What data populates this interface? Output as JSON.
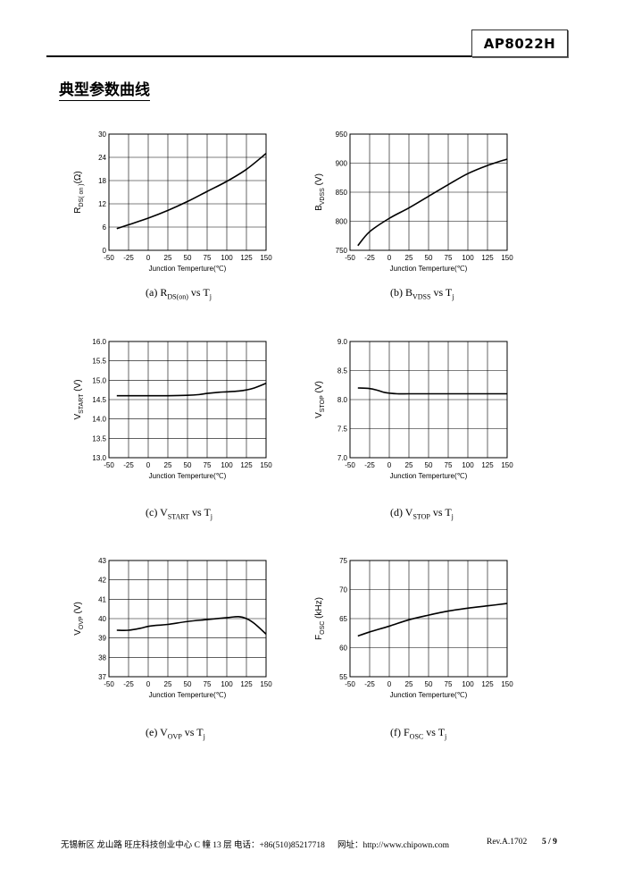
{
  "header": {
    "part_number": "AP8022H"
  },
  "section_title": "典型参数曲线",
  "chart_data": [
    {
      "type": "line",
      "xlabel": "Junction Temperture(℃)",
      "ylabel": {
        "main": "R",
        "sub": "DS( on )",
        "unit": "(Ω)"
      },
      "xlim": [
        -50,
        150
      ],
      "ylim": [
        0,
        30
      ],
      "xticks": [
        -50,
        -25,
        0,
        25,
        50,
        75,
        100,
        125,
        150
      ],
      "yticks": [
        0,
        6,
        12,
        18,
        24,
        30
      ],
      "grid": true,
      "x": [
        -40,
        -25,
        0,
        25,
        50,
        75,
        100,
        125,
        150
      ],
      "y": [
        5.6,
        6.6,
        8.3,
        10.3,
        12.6,
        15.2,
        17.8,
        20.9,
        25.0
      ],
      "caption": {
        "prefix": "(a) R",
        "sub": "DS(on)",
        "suffix": " vs T",
        "sub2": "j"
      }
    },
    {
      "type": "line",
      "xlabel": "Junction Temperture(℃)",
      "ylabel": {
        "main": "B",
        "sub": "VDSS",
        "unit": " (V)"
      },
      "xlim": [
        -50,
        150
      ],
      "ylim": [
        750,
        950
      ],
      "xticks": [
        -50,
        -25,
        0,
        25,
        50,
        75,
        100,
        125,
        150
      ],
      "yticks": [
        750,
        800,
        850,
        900,
        950
      ],
      "grid": true,
      "x": [
        -40,
        -25,
        0,
        25,
        50,
        75,
        100,
        125,
        150
      ],
      "y": [
        758,
        782,
        805,
        823,
        843,
        863,
        882,
        896,
        907
      ],
      "caption": {
        "prefix": "(b) B",
        "sub": "VDSS",
        "suffix": " vs T",
        "sub2": "j"
      }
    },
    {
      "type": "line",
      "xlabel": "Junction Temperture(℃)",
      "ylabel": {
        "main": "V",
        "sub": "START",
        "unit": " (V)"
      },
      "xlim": [
        -50,
        150
      ],
      "ylim": [
        13.0,
        16.0
      ],
      "xticks": [
        -50,
        -25,
        0,
        25,
        50,
        75,
        100,
        125,
        150
      ],
      "yticks": [
        13.0,
        13.5,
        14.0,
        14.5,
        15.0,
        15.5,
        16.0
      ],
      "grid": true,
      "x": [
        -40,
        -25,
        0,
        25,
        50,
        65,
        75,
        90,
        100,
        115,
        125,
        135,
        150
      ],
      "y": [
        14.6,
        14.6,
        14.6,
        14.6,
        14.61,
        14.63,
        14.66,
        14.69,
        14.7,
        14.72,
        14.75,
        14.8,
        14.92
      ],
      "caption": {
        "prefix": "(c) V",
        "sub": "START",
        "suffix": " vs T",
        "sub2": "j"
      }
    },
    {
      "type": "line",
      "xlabel": "Junction Temperture(℃)",
      "ylabel": {
        "main": "V",
        "sub": "STOP",
        "unit": " (V)"
      },
      "xlim": [
        -50,
        150
      ],
      "ylim": [
        7.0,
        9.0
      ],
      "xticks": [
        -50,
        -25,
        0,
        25,
        50,
        75,
        100,
        125,
        150
      ],
      "yticks": [
        7.0,
        7.5,
        8.0,
        8.5,
        9.0
      ],
      "grid": true,
      "x": [
        -40,
        -25,
        -15,
        -5,
        10,
        25,
        50,
        75,
        100,
        125,
        150
      ],
      "y": [
        8.2,
        8.19,
        8.16,
        8.12,
        8.1,
        8.1,
        8.1,
        8.1,
        8.1,
        8.1,
        8.1
      ],
      "caption": {
        "prefix": "(d) V",
        "sub": "STOP",
        "suffix": " vs T",
        "sub2": "j"
      }
    },
    {
      "type": "line",
      "xlabel": "Junction Temperture(℃)",
      "ylabel": {
        "main": "V",
        "sub": "OVP",
        "unit": " (V)"
      },
      "xlim": [
        -50,
        150
      ],
      "ylim": [
        37,
        43
      ],
      "xticks": [
        -50,
        -25,
        0,
        25,
        50,
        75,
        100,
        125,
        150
      ],
      "yticks": [
        37,
        38,
        39,
        40,
        41,
        42,
        43
      ],
      "grid": true,
      "x": [
        -40,
        -25,
        -10,
        0,
        10,
        25,
        50,
        75,
        100,
        115,
        125,
        135,
        150
      ],
      "y": [
        39.4,
        39.4,
        39.5,
        39.6,
        39.65,
        39.7,
        39.85,
        39.95,
        40.05,
        40.1,
        40.0,
        39.75,
        39.2
      ],
      "caption": {
        "prefix": "(e) V",
        "sub": "OVP",
        "suffix": " vs T",
        "sub2": "j"
      }
    },
    {
      "type": "line",
      "xlabel": "Junction Temperture(℃)",
      "ylabel": {
        "main": "F",
        "sub": "OSC",
        "unit": " (kHz)"
      },
      "xlim": [
        -50,
        150
      ],
      "ylim": [
        55,
        75
      ],
      "xticks": [
        -50,
        -25,
        0,
        25,
        50,
        75,
        100,
        125,
        150
      ],
      "yticks": [
        55,
        60,
        65,
        70,
        75
      ],
      "grid": true,
      "x": [
        -40,
        -25,
        0,
        25,
        50,
        75,
        100,
        125,
        150
      ],
      "y": [
        62.0,
        62.7,
        63.7,
        64.8,
        65.6,
        66.3,
        66.8,
        67.2,
        67.6
      ],
      "caption": {
        "prefix": "(f) F",
        "sub": "OSC",
        "suffix": " vs T",
        "sub2": "j"
      }
    }
  ],
  "footer": {
    "address": "无锡新区  龙山路  旺庄科技创业中心 C 幢 13 层",
    "phone": "电话：+86(510)85217718",
    "website": "网址：http://www.chipown.com",
    "revision": "Rev.A.1702",
    "page": "5 / 9"
  }
}
